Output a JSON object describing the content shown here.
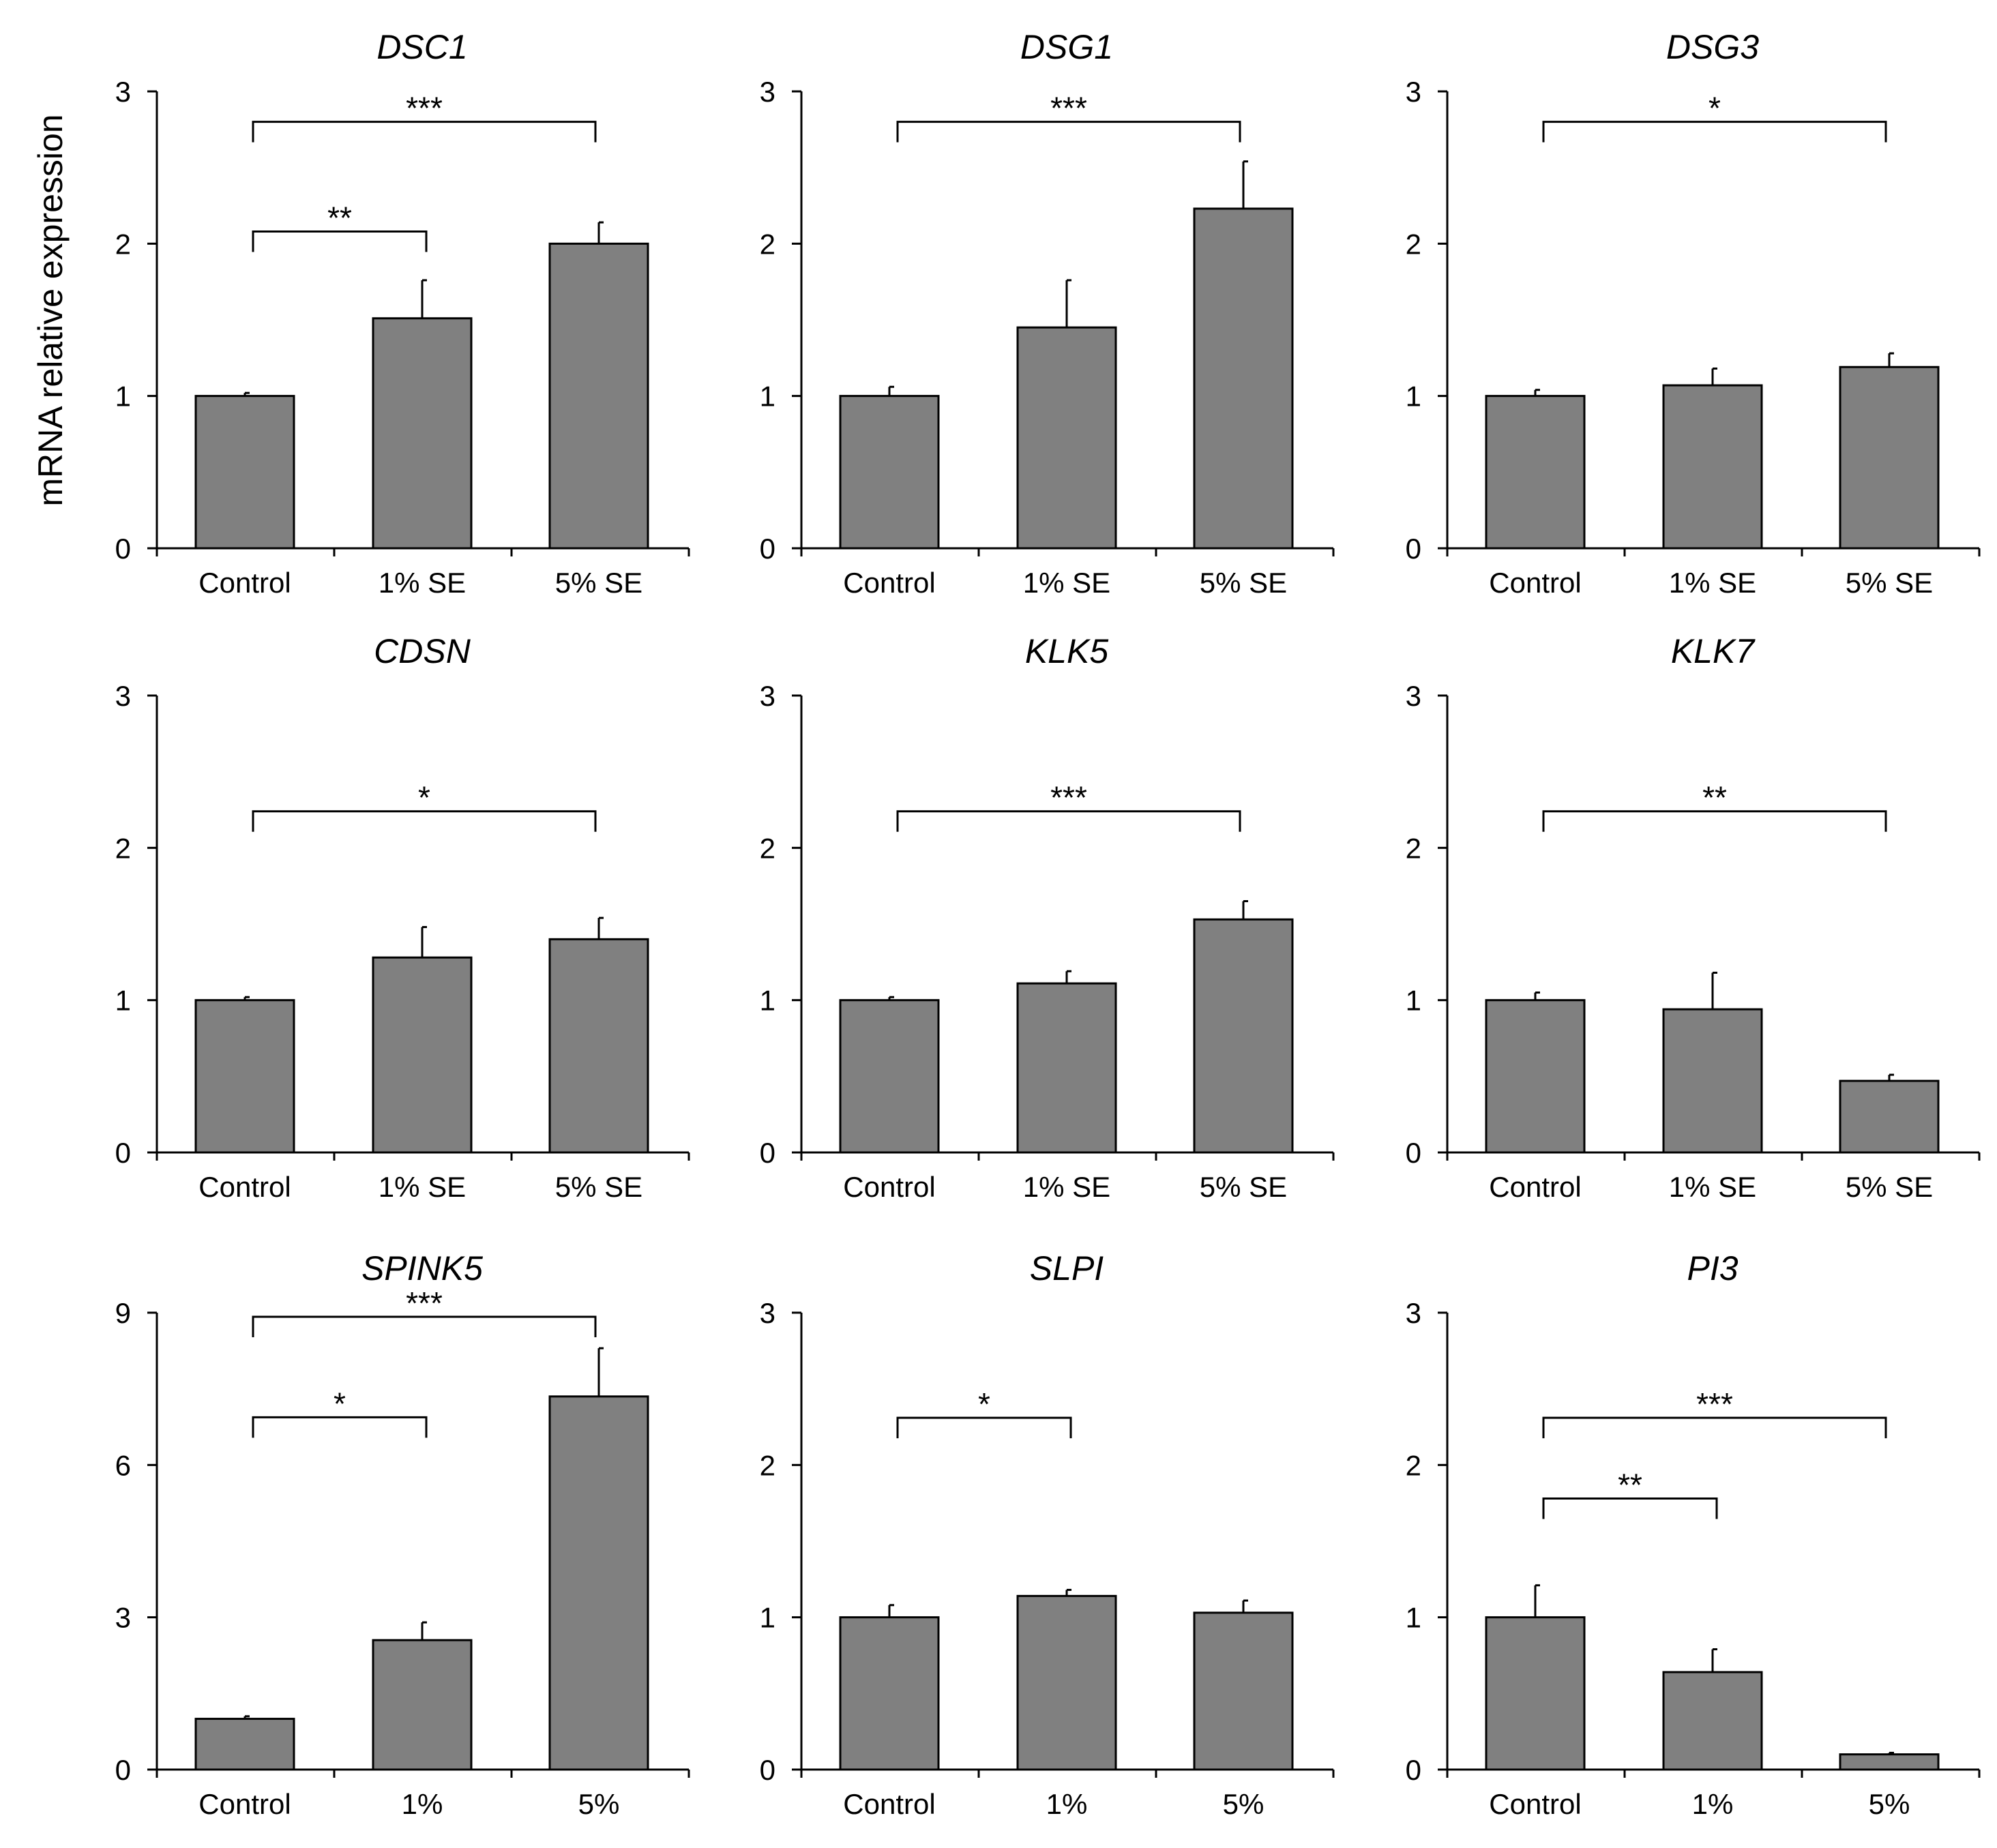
{
  "figure": {
    "ylabel": "mRNA relative expression"
  },
  "colors": {
    "bar_fill": "#808080",
    "bar_stroke": "#000000",
    "axis": "#000000",
    "text": "#000000"
  },
  "chart_data": [
    {
      "type": "bar",
      "title": "DSC1",
      "categories": [
        "Control",
        "1% SE",
        "5% SE"
      ],
      "values": [
        1.0,
        1.51,
        2.0
      ],
      "errors": [
        0.02,
        0.25,
        0.14
      ],
      "ylim": [
        0,
        3
      ],
      "yticks": [
        0,
        1,
        2,
        3
      ],
      "significance": [
        {
          "from": 0,
          "to": 2,
          "label": "***",
          "y": 2.8
        },
        {
          "from": 0,
          "to": 1,
          "label": "**",
          "y": 2.08
        }
      ]
    },
    {
      "type": "bar",
      "title": "DSG1",
      "categories": [
        "Control",
        "1% SE",
        "5% SE"
      ],
      "values": [
        1.0,
        1.45,
        2.23
      ],
      "errors": [
        0.06,
        0.31,
        0.31
      ],
      "ylim": [
        0,
        3
      ],
      "yticks": [
        0,
        1,
        2,
        3
      ],
      "significance": [
        {
          "from": 0,
          "to": 2,
          "label": "***",
          "y": 2.8
        }
      ]
    },
    {
      "type": "bar",
      "title": "DSG3",
      "categories": [
        "Control",
        "1% SE",
        "5% SE"
      ],
      "values": [
        1.0,
        1.07,
        1.19
      ],
      "errors": [
        0.04,
        0.11,
        0.09
      ],
      "ylim": [
        0,
        3
      ],
      "yticks": [
        0,
        1,
        2,
        3
      ],
      "significance": [
        {
          "from": 0,
          "to": 2,
          "label": "*",
          "y": 2.8
        }
      ]
    },
    {
      "type": "bar",
      "title": "CDSN",
      "categories": [
        "Control",
        "1% SE",
        "5% SE"
      ],
      "values": [
        1.0,
        1.28,
        1.4
      ],
      "errors": [
        0.02,
        0.2,
        0.14
      ],
      "ylim": [
        0,
        3
      ],
      "yticks": [
        0,
        1,
        2,
        3
      ],
      "significance": [
        {
          "from": 0,
          "to": 2,
          "label": "*",
          "y": 2.24
        }
      ]
    },
    {
      "type": "bar",
      "title": "KLK5",
      "categories": [
        "Control",
        "1% SE",
        "5% SE"
      ],
      "values": [
        1.0,
        1.11,
        1.53
      ],
      "errors": [
        0.02,
        0.08,
        0.12
      ],
      "ylim": [
        0,
        3
      ],
      "yticks": [
        0,
        1,
        2,
        3
      ],
      "significance": [
        {
          "from": 0,
          "to": 2,
          "label": "***",
          "y": 2.24
        }
      ]
    },
    {
      "type": "bar",
      "title": "KLK7",
      "categories": [
        "Control",
        "1% SE",
        "5% SE"
      ],
      "values": [
        1.0,
        0.94,
        0.47
      ],
      "errors": [
        0.05,
        0.24,
        0.04
      ],
      "ylim": [
        0,
        3
      ],
      "yticks": [
        0,
        1,
        2,
        3
      ],
      "significance": [
        {
          "from": 0,
          "to": 2,
          "label": "**",
          "y": 2.24
        }
      ]
    },
    {
      "type": "bar",
      "title": "SPINK5",
      "categories": [
        "Control",
        "1%",
        "5%"
      ],
      "values": [
        1.0,
        2.55,
        7.35
      ],
      "errors": [
        0.05,
        0.35,
        0.95
      ],
      "ylim": [
        0,
        9
      ],
      "yticks": [
        0,
        3,
        6,
        9
      ],
      "significance": [
        {
          "from": 0,
          "to": 2,
          "label": "***",
          "y": 8.92
        },
        {
          "from": 0,
          "to": 1,
          "label": "*",
          "y": 6.94
        }
      ]
    },
    {
      "type": "bar",
      "title": "SLPI",
      "categories": [
        "Control",
        "1%",
        "5%"
      ],
      "values": [
        1.0,
        1.14,
        1.03
      ],
      "errors": [
        0.08,
        0.04,
        0.08
      ],
      "ylim": [
        0,
        3
      ],
      "yticks": [
        0,
        1,
        2,
        3
      ],
      "significance": [
        {
          "from": 0,
          "to": 1,
          "label": "*",
          "y": 2.31
        }
      ]
    },
    {
      "type": "bar",
      "title": "PI3",
      "categories": [
        "Control",
        "1%",
        "5%"
      ],
      "values": [
        1.0,
        0.64,
        0.1
      ],
      "errors": [
        0.21,
        0.15,
        0.01
      ],
      "ylim": [
        0,
        3
      ],
      "yticks": [
        0,
        1,
        2,
        3
      ],
      "significance": [
        {
          "from": 0,
          "to": 2,
          "label": "***",
          "y": 2.31
        },
        {
          "from": 0,
          "to": 1,
          "label": "**",
          "y": 1.78
        }
      ]
    }
  ]
}
